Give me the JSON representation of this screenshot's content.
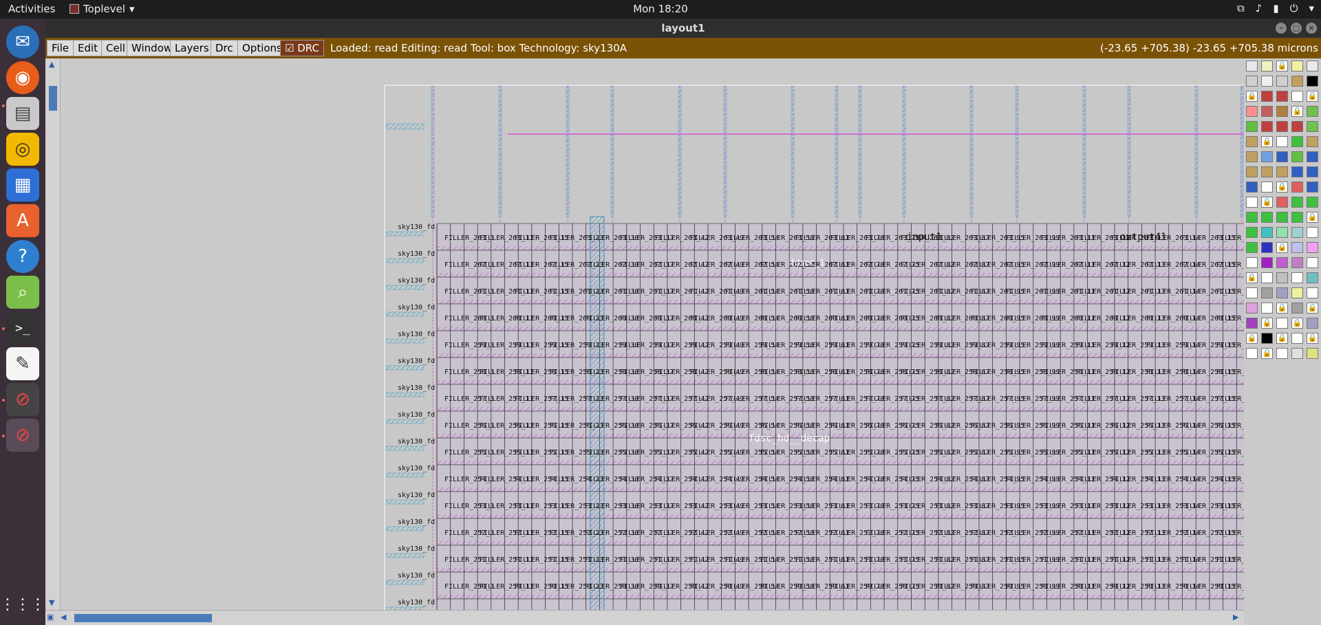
{
  "topbar": {
    "activities": "Activities",
    "app_name": "Toplevel",
    "clock": "Mon 18:20",
    "tray_icons": [
      "network-icon",
      "volume-icon",
      "battery-icon",
      "power-icon"
    ]
  },
  "dock": {
    "items": [
      "thunderbird-icon",
      "firefox-icon",
      "files-icon",
      "rhythmbox-icon",
      "writer-icon",
      "software-icon",
      "help-icon",
      "image-viewer-icon",
      "terminal-icon",
      "text-editor-icon",
      "blocked-app-icon",
      "blocked-app-icon",
      "app-grid-icon"
    ]
  },
  "window": {
    "title": "layout1"
  },
  "menubar": {
    "items": [
      "File",
      "Edit",
      "Cell",
      "Window",
      "Layers",
      "Drc",
      "Options"
    ],
    "drc_label": "DRC",
    "drc_checked": true,
    "status": "Loaded: read Editing: read Tool: box  Technology: sky130A",
    "coords": "(-23.65 +705.38) -23.65 +705.38 microns",
    "accent": "#7a5206"
  },
  "layout": {
    "labels": {
      "input1": "input1",
      "output41": "output41",
      "instance_c": "fdsec_1",
      "instance_row": "fdsc_hd__decap"
    },
    "row_prefix": "sky130_fd",
    "rows": [
      "263",
      "262",
      "261",
      "260",
      "259",
      "258",
      "257",
      "256",
      "255",
      "254",
      "253",
      "252",
      "251",
      "250",
      "249"
    ],
    "filler_cols": [
      "3",
      "11",
      "15",
      "23",
      "30",
      "37",
      "42",
      "49",
      "54",
      "58",
      "61",
      "70",
      "75",
      "82",
      "87",
      "95",
      "99",
      "11",
      "12",
      "13",
      "14",
      "15",
      "16"
    ]
  }
}
